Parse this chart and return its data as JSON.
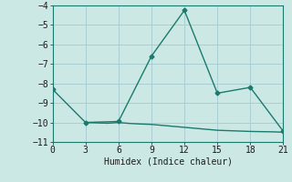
{
  "line1_x": [
    0,
    3,
    6,
    9,
    12,
    15,
    18,
    21
  ],
  "line1_y": [
    -8.3,
    -10.0,
    -9.95,
    -6.6,
    -4.25,
    -8.5,
    -8.2,
    -10.45
  ],
  "line2_x": [
    3,
    4,
    5,
    6,
    7,
    8,
    9,
    10,
    11,
    12,
    13,
    14,
    15,
    16,
    17,
    18,
    19,
    20,
    21
  ],
  "line2_y": [
    -10.0,
    -10.02,
    -10.04,
    -10.0,
    -10.05,
    -10.08,
    -10.1,
    -10.15,
    -10.2,
    -10.25,
    -10.3,
    -10.35,
    -10.4,
    -10.42,
    -10.44,
    -10.46,
    -10.47,
    -10.48,
    -10.5
  ],
  "line_color": "#1a7a6e",
  "bg_color": "#cce8e4",
  "grid_color": "#aaced4",
  "xlabel": "Humidex (Indice chaleur)",
  "xlim": [
    0,
    21
  ],
  "ylim": [
    -11,
    -4
  ],
  "xticks": [
    0,
    3,
    6,
    9,
    12,
    15,
    18,
    21
  ],
  "yticks": [
    -4,
    -5,
    -6,
    -7,
    -8,
    -9,
    -10,
    -11
  ],
  "marker": "D",
  "markersize": 2.5,
  "linewidth": 1.0
}
